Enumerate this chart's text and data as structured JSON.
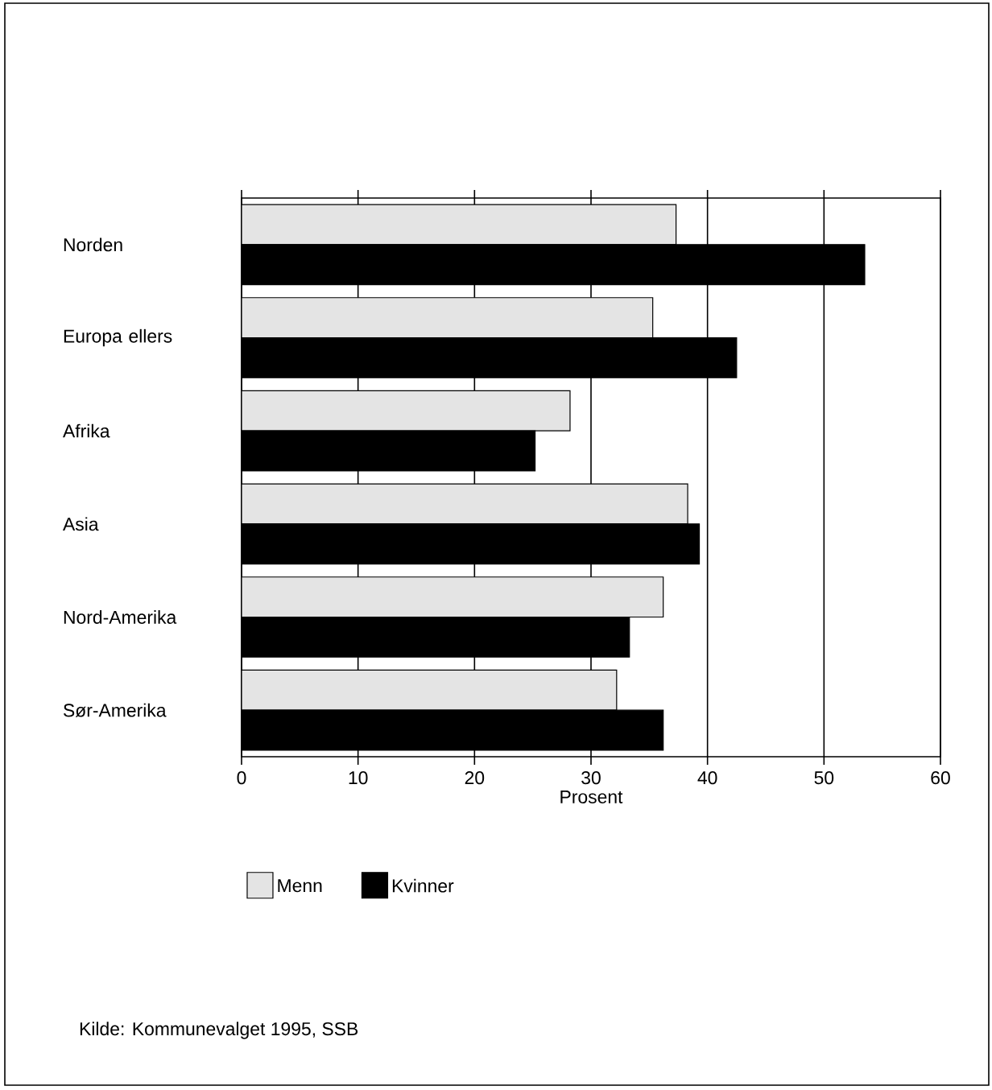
{
  "chart_data": {
    "type": "bar",
    "orientation": "horizontal",
    "categories": [
      "Norden",
      "Europa ellers",
      "Afrika",
      "Asia",
      "Nord-Amerika",
      "Sør-Amerika"
    ],
    "series": [
      {
        "name": "Menn",
        "color": "#e4e4e4",
        "values": [
          37.3,
          35.3,
          28.2,
          38.3,
          36.2,
          32.2
        ]
      },
      {
        "name": "Kvinner",
        "color": "#000000",
        "values": [
          53.5,
          42.5,
          25.2,
          39.3,
          33.3,
          36.2
        ]
      }
    ],
    "xlabel": "Prosent",
    "xlim": [
      0,
      60
    ],
    "xticks": [
      0,
      10,
      20,
      30,
      40,
      50,
      60
    ],
    "grid": "x",
    "legend": "bottom",
    "annotations": [
      "Kilde: Kommunevalget 1995, SSB"
    ]
  }
}
